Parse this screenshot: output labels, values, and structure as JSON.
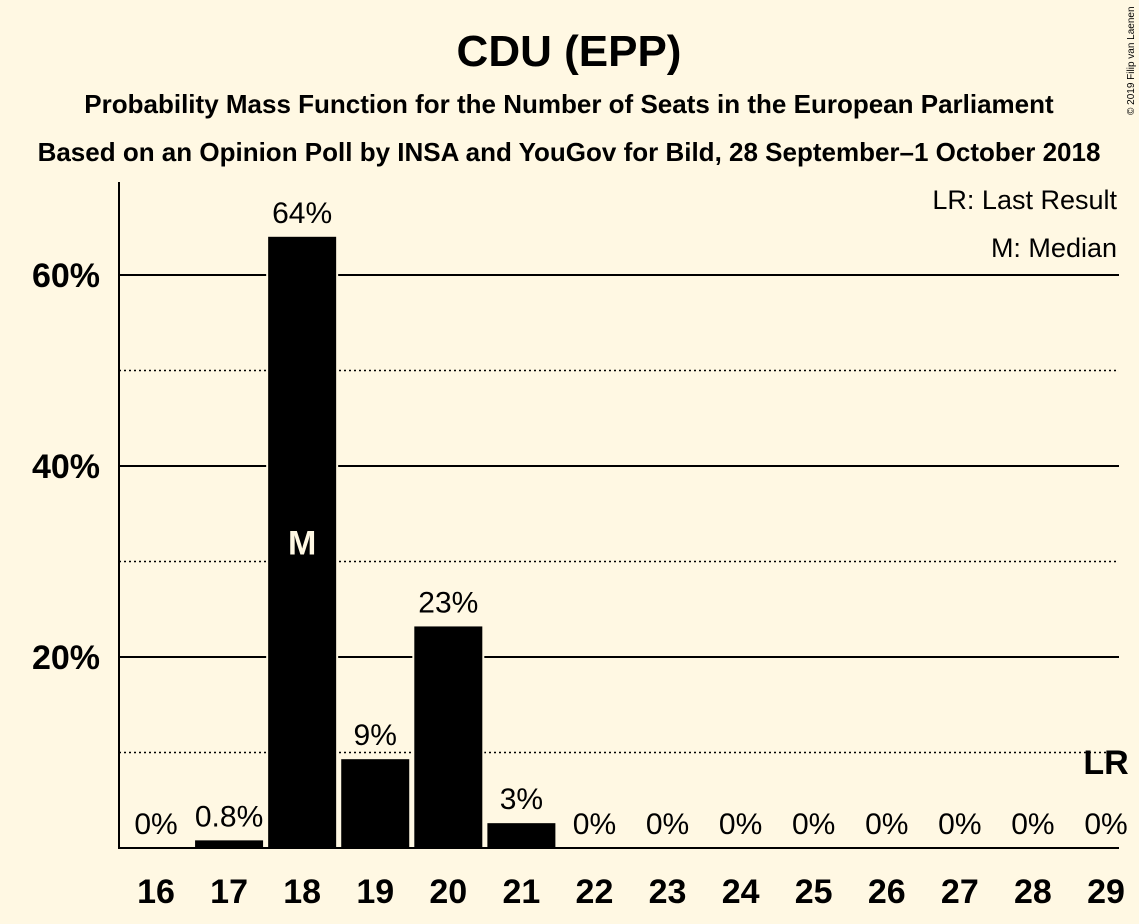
{
  "copyright": "© 2019 Filip van Laenen",
  "chart_data": {
    "type": "bar",
    "title": "CDU (EPP)",
    "subtitle1": "Probability Mass Function for the Number of Seats in the European Parliament",
    "subtitle2": "Based on an Opinion Poll by INSA and YouGov for Bild, 28 September–1 October 2018",
    "categories": [
      "16",
      "17",
      "18",
      "19",
      "20",
      "21",
      "22",
      "23",
      "24",
      "25",
      "26",
      "27",
      "28",
      "29"
    ],
    "values": [
      0,
      0.8,
      64,
      9.3,
      23.2,
      2.6,
      0,
      0,
      0,
      0,
      0,
      0,
      0,
      0
    ],
    "value_labels": [
      "0%",
      "0.8%",
      "64%",
      "9%",
      "23%",
      "3%",
      "0%",
      "0%",
      "0%",
      "0%",
      "0%",
      "0%",
      "0%",
      "0%"
    ],
    "ylim": [
      0,
      70
    ],
    "yticks": [
      20,
      40,
      60
    ],
    "ytick_labels": [
      "20%",
      "40%",
      "60%"
    ],
    "minor_gridlines": [
      10,
      30,
      50
    ],
    "median_category": "18",
    "median_marker": "M",
    "last_result_category": "29",
    "last_result_marker": "LR",
    "legend": [
      "LR: Last Result",
      "M: Median"
    ],
    "legend_position": "top-right",
    "bar_color": "#000000",
    "background_color": "#fff8e3"
  }
}
